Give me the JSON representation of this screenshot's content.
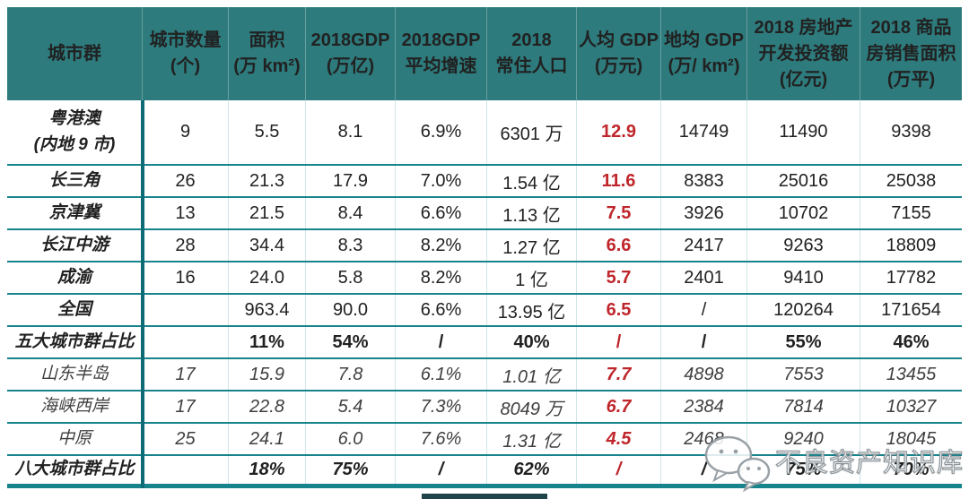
{
  "chart_data": {
    "type": "table",
    "title": "",
    "columns": [
      {
        "lines": [
          "城市群"
        ]
      },
      {
        "lines": [
          "城市数量",
          "(个)"
        ]
      },
      {
        "lines": [
          "面积",
          "(万 km²)"
        ]
      },
      {
        "lines": [
          "2018GDP",
          "(万亿)"
        ]
      },
      {
        "lines": [
          "2018GDP",
          "平均增速"
        ]
      },
      {
        "lines": [
          "2018",
          "常住人口"
        ]
      },
      {
        "lines": [
          "人均 GDP",
          "(万元)"
        ]
      },
      {
        "lines": [
          "地均 GDP",
          "(万/ km²)"
        ]
      },
      {
        "lines": [
          "2018 房地产",
          "开发投资额",
          "(亿元)"
        ]
      },
      {
        "lines": [
          "2018 商品",
          "房销售面积",
          "(万平)"
        ]
      }
    ],
    "rows": [
      {
        "name": "粤港澳",
        "name2": "(内地 9 市)",
        "style": "main",
        "values": [
          "9",
          "5.5",
          "8.1",
          "6.9%",
          "6301 万",
          "12.9",
          "14749",
          "11490",
          "9398"
        ]
      },
      {
        "name": "长三角",
        "style": "main",
        "values": [
          "26",
          "21.3",
          "17.9",
          "7.0%",
          "1.54 亿",
          "11.6",
          "8383",
          "25016",
          "25038"
        ]
      },
      {
        "name": "京津冀",
        "style": "main",
        "values": [
          "13",
          "21.5",
          "8.4",
          "6.6%",
          "1.13 亿",
          "7.5",
          "3926",
          "10702",
          "7155"
        ]
      },
      {
        "name": "长江中游",
        "style": "main",
        "values": [
          "28",
          "34.4",
          "8.3",
          "8.2%",
          "1.27 亿",
          "6.6",
          "2417",
          "9263",
          "18809"
        ]
      },
      {
        "name": "成渝",
        "style": "main",
        "values": [
          "16",
          "24.0",
          "5.8",
          "8.2%",
          "1 亿",
          "5.7",
          "2401",
          "9410",
          "17782"
        ]
      },
      {
        "name": "全国",
        "style": "main",
        "values": [
          "",
          "963.4",
          "90.0",
          "6.6%",
          "13.95 亿",
          "6.5",
          "/",
          "120264",
          "171654"
        ]
      },
      {
        "name": "五大城市群占比",
        "style": "summary",
        "values": [
          "",
          "11%",
          "54%",
          "/",
          "40%",
          "/",
          "/",
          "55%",
          "46%"
        ]
      },
      {
        "name": "山东半岛",
        "style": "sub",
        "values": [
          "17",
          "15.9",
          "7.8",
          "6.1%",
          "1.01 亿",
          "7.7",
          "4898",
          "7553",
          "13455"
        ]
      },
      {
        "name": "海峡西岸",
        "style": "sub",
        "values": [
          "17",
          "22.8",
          "5.4",
          "7.3%",
          "8049 万",
          "6.7",
          "2384",
          "7814",
          "10327"
        ]
      },
      {
        "name": "中原",
        "style": "sub",
        "values": [
          "25",
          "24.1",
          "6.0",
          "7.6%",
          "1.31 亿",
          "4.5",
          "2468",
          "9240",
          "18045"
        ]
      },
      {
        "name": "八大城市群占比",
        "style": "subsummary",
        "values": [
          "",
          "18%",
          "75%",
          "/",
          "62%",
          "/",
          "/",
          "75%",
          "70%"
        ]
      }
    ],
    "accent_column": "人均 GDP (万元)",
    "layout": {
      "grid": "teal horizontal rules",
      "legend": "none"
    }
  },
  "watermark": {
    "label": "不良资产知识库",
    "icon": "wechat-logo"
  },
  "colors": {
    "header_bg": "#2e7b7d",
    "border_teal": "#17838b",
    "divider_dark_teal": "#0d6b75",
    "accent_red": "#bf262b",
    "text": "#212121"
  }
}
